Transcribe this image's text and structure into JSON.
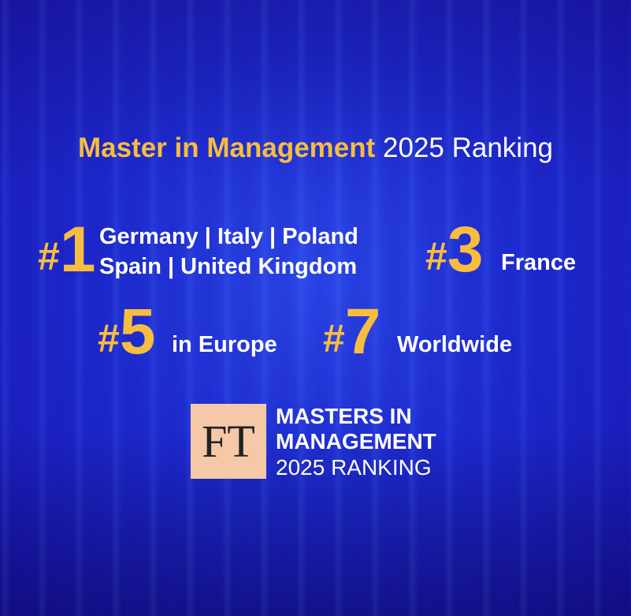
{
  "title": {
    "highlight": "Master in Management",
    "rest": "2025 Ranking"
  },
  "rankings": [
    {
      "hash": "#",
      "number": "1",
      "lines": [
        "Germany | Italy | Poland",
        "Spain | United Kingdom"
      ]
    },
    {
      "hash": "#",
      "number": "3",
      "lines": [
        "France"
      ]
    },
    {
      "hash": "#",
      "number": "5",
      "lines": [
        "in Europe"
      ]
    },
    {
      "hash": "#",
      "number": "7",
      "lines": [
        "Worldwide"
      ]
    }
  ],
  "badge": {
    "logo": "FT",
    "lines": [
      "MASTERS IN",
      "MANAGEMENT",
      "2025 RANKING"
    ]
  }
}
